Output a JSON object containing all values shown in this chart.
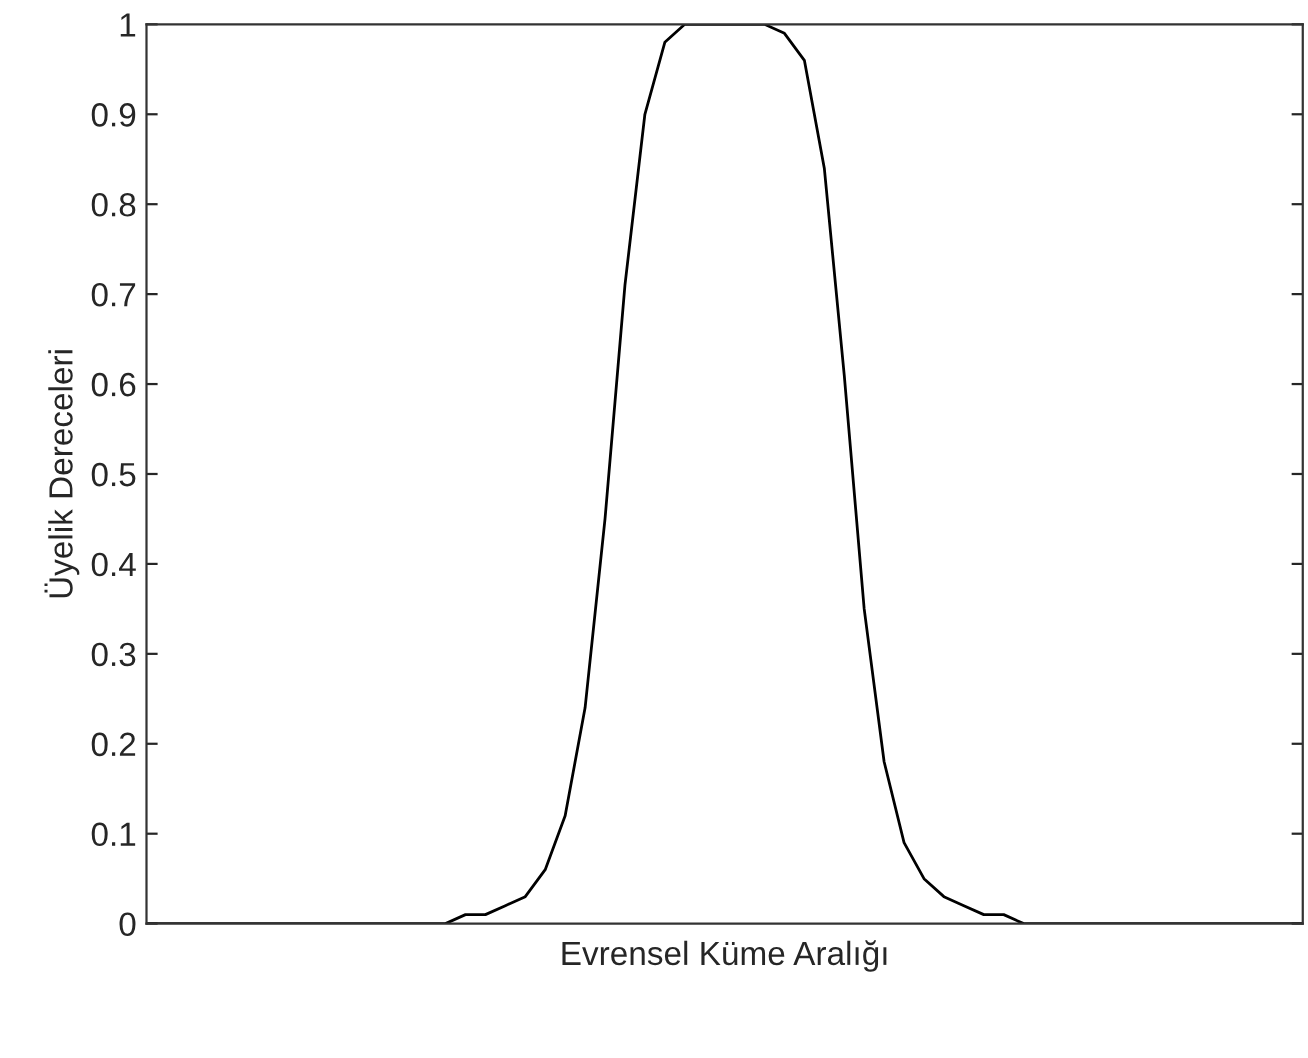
{
  "chart_data": {
    "type": "line",
    "xlabel": "Evrensel Küme Aralığı",
    "ylabel": "Üyelik Dereceleri",
    "categories": [
      null,
      null,
      null,
      null,
      null,
      null,
      null,
      null,
      null,
      null,
      null,
      null,
      null,
      null,
      null,
      null,
      null,
      null,
      null,
      null,
      null,
      null,
      null,
      null,
      null,
      null,
      null,
      null,
      null,
      null,
      null,
      null,
      null,
      null,
      null,
      null,
      null,
      null,
      null,
      null,
      null,
      null,
      null,
      null,
      null,
      null,
      null,
      null,
      null,
      null,
      null,
      null,
      null,
      null,
      null,
      null,
      null,
      null,
      null
    ],
    "values": [
      0,
      0,
      0,
      0,
      0,
      0,
      0,
      0,
      0,
      0,
      0,
      0,
      0,
      0,
      0,
      0,
      0.01,
      0.01,
      0.02,
      0.03,
      0.06,
      0.12,
      0.24,
      0.45,
      0.71,
      0.9,
      0.98,
      1.0,
      1.0,
      1.0,
      1.0,
      1.0,
      0.99,
      0.96,
      0.84,
      0.61,
      0.35,
      0.18,
      0.09,
      0.05,
      0.03,
      0.02,
      0.01,
      0.01,
      0,
      0,
      0,
      0,
      0,
      0,
      0,
      0,
      0,
      0,
      0,
      0,
      0,
      0,
      0
    ],
    "color": "#000000",
    "ylim": [
      0,
      1
    ],
    "yticks": [
      0,
      0.1,
      0.2,
      0.3,
      0.4,
      0.5,
      0.6,
      0.7,
      0.8,
      0.9,
      1
    ],
    "tick_labels": "y"
  }
}
